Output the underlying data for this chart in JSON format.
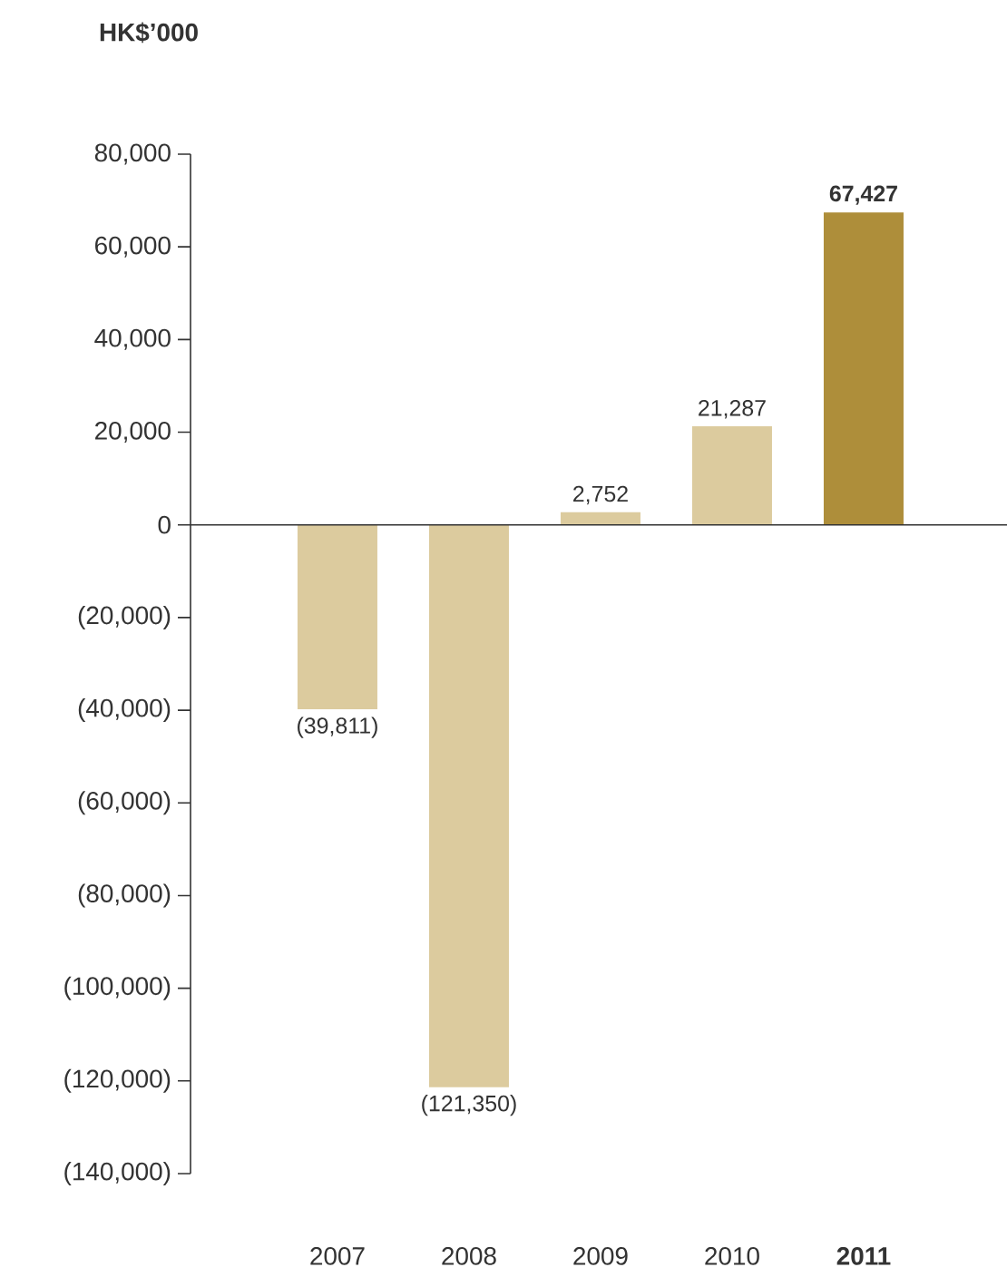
{
  "chart_data": {
    "type": "bar",
    "ylabel": "HK$’000",
    "categories": [
      "2007",
      "2008",
      "2009",
      "2010",
      "**2011**"
    ],
    "values": [
      -39811,
      -121350,
      2752,
      21287,
      67427
    ],
    "value_labels": [
      "(39,811)",
      "(121,350)",
      "2,752",
      "21,287",
      "**67,427**"
    ],
    "colors": [
      "#dccb9e",
      "#dccb9e",
      "#dccb9e",
      "#dccb9e",
      "#ae8e3a"
    ],
    "ylim": [
      -140000,
      80000
    ],
    "yticks": [
      {
        "value": -140000,
        "label": "(140,000)"
      },
      {
        "value": -120000,
        "label": "(120,000)"
      },
      {
        "value": -100000,
        "label": "(100,000)"
      },
      {
        "value": -80000,
        "label": "(80,000)"
      },
      {
        "value": -60000,
        "label": "(60,000)"
      },
      {
        "value": -40000,
        "label": "(40,000)"
      },
      {
        "value": -20000,
        "label": "(20,000)"
      },
      {
        "value": 0,
        "label": "0"
      },
      {
        "value": 20000,
        "label": "20,000"
      },
      {
        "value": 40000,
        "label": "40,000"
      },
      {
        "value": 60000,
        "label": "60,000"
      },
      {
        "value": 80000,
        "label": "80,000"
      }
    ]
  }
}
